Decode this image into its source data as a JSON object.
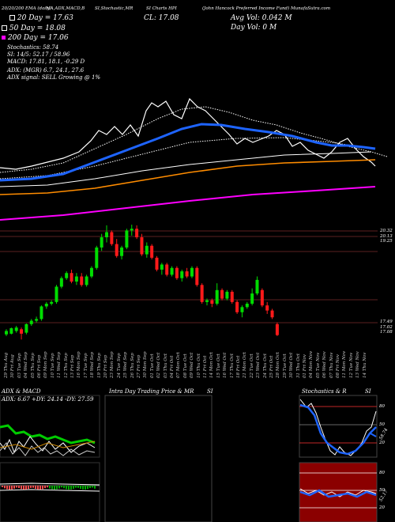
{
  "header": {
    "left_title": "20/20/200 EMA (daily)",
    "mid_titles": [
      "MA,ADX,MACD,B",
      "SI,Stochastic,MR",
      "SI Charts HPI"
    ],
    "right_title": "(John Hancock Preferred Income Fund) MunafaSutra.com"
  },
  "legend": [
    {
      "label": "20 Day = 17.63",
      "color": "#ffffff"
    },
    {
      "label": "50 Day = 18.08",
      "color": "#ffffff"
    },
    {
      "label": "200 Day = 17.06",
      "color": "#ff00ff"
    }
  ],
  "stats": {
    "cl": "CL: 17.08",
    "avg_vol": "Avg Vol: 0.042 M",
    "day_vol": "Day Vol: 0  M"
  },
  "indicators": [
    "Stochastics: 58.74",
    "SI: 14/5: 52.17 / 58.96",
    "MACD: 17.81, 18.1, -0.29 D",
    "ADX:                    (MGR) 6.7, 24.1, 27.6",
    "ADX  signal: SELL Growing @ 1%"
  ],
  "price_labels_right": [
    "20.32",
    "20.13",
    "19.25",
    "17.49",
    "17.02",
    "17.08"
  ],
  "dates": [
    "29 Thu Aug",
    "30 Fri Aug",
    "03 Tue Sep",
    "04 Wed Sep",
    "05 Thu Sep",
    "06 Fri Sep",
    "09 Mon Sep",
    "10 Tue Sep",
    "11 Wed Sep",
    "12 Thu Sep",
    "13 Fri Sep",
    "16 Mon Sep",
    "17 Tue Sep",
    "18 Wed Sep",
    "19 Thu Sep",
    "20 Fri Sep",
    "23 Mon Sep",
    "24 Tue Sep",
    "25 Wed Sep",
    "26 Thu Sep",
    "27 Fri Sep",
    "30 Mon Sep",
    "01 Tue Oct",
    "02 Wed Oct",
    "03 Thu Oct",
    "04 Fri Oct",
    "07 Mon Oct",
    "08 Tue Oct",
    "09 Wed Oct",
    "10 Thu Oct",
    "11 Fri Oct",
    "14 Mon Oct",
    "15 Tue Oct",
    "16 Wed Oct",
    "17 Thu Oct",
    "18 Fri Oct",
    "21 Mon Oct",
    "22 Tue Oct",
    "23 Wed Oct",
    "24 Thu Oct",
    "25 Fri Oct",
    "28 Mon Oct",
    "29 Tue Oct",
    "30 Wed Oct",
    "31 Thu Oct",
    "01 Fri Nov",
    "04 Mon Nov",
    "05 Tue Nov",
    "06 Wed Nov",
    "07 Thu Nov",
    "08 Fri Nov",
    "11 Mon Nov",
    "12 Tue Nov",
    "13 Wed Nov",
    "14 Thu Nov"
  ],
  "panels": {
    "adx_title": "ADX  & MACD",
    "adx_values": "ADX: 6.67  +DY: 24.14  -DY: 27.59",
    "mr_title": "Intra  Day Trading Price  & MR",
    "mr_si": "SI",
    "stoch_title": "Stochastics & R",
    "stoch_si": "SI",
    "stoch_scale": [
      "80",
      "50",
      "20"
    ],
    "si_scale": [
      "80",
      "50",
      "20"
    ],
    "stoch_value": "58.74",
    "si_value": "52.17"
  },
  "chart_data": {
    "type": "candlestick",
    "title": "SI Charts HPI",
    "ylabel": "",
    "candles": [
      {
        "o": 17.1,
        "h": 17.25,
        "l": 17.05,
        "c": 17.2
      },
      {
        "o": 17.12,
        "h": 17.3,
        "l": 17.1,
        "c": 17.28
      },
      {
        "o": 17.2,
        "h": 17.35,
        "l": 17.15,
        "c": 17.3
      },
      {
        "o": 17.25,
        "h": 17.3,
        "l": 16.95,
        "c": 17.12
      },
      {
        "o": 17.15,
        "h": 17.42,
        "l": 17.1,
        "c": 17.4
      },
      {
        "o": 17.4,
        "h": 17.55,
        "l": 17.35,
        "c": 17.5
      },
      {
        "o": 17.5,
        "h": 17.62,
        "l": 17.45,
        "c": 17.55
      },
      {
        "o": 17.55,
        "h": 17.95,
        "l": 17.5,
        "c": 17.92
      },
      {
        "o": 17.92,
        "h": 18.05,
        "l": 17.85,
        "c": 18.0
      },
      {
        "o": 18.0,
        "h": 18.1,
        "l": 17.95,
        "c": 18.05
      },
      {
        "o": 18.05,
        "h": 18.55,
        "l": 18.0,
        "c": 18.5
      },
      {
        "o": 18.5,
        "h": 18.8,
        "l": 18.45,
        "c": 18.75
      },
      {
        "o": 18.75,
        "h": 18.95,
        "l": 18.7,
        "c": 18.9
      },
      {
        "o": 18.9,
        "h": 19.0,
        "l": 18.6,
        "c": 18.65
      },
      {
        "o": 18.65,
        "h": 18.9,
        "l": 18.55,
        "c": 18.8
      },
      {
        "o": 18.8,
        "h": 18.9,
        "l": 18.5,
        "c": 18.55
      },
      {
        "o": 18.55,
        "h": 18.85,
        "l": 18.5,
        "c": 18.8
      },
      {
        "o": 18.8,
        "h": 19.1,
        "l": 18.75,
        "c": 19.05
      },
      {
        "o": 19.05,
        "h": 19.7,
        "l": 19.0,
        "c": 19.65
      },
      {
        "o": 19.65,
        "h": 20.05,
        "l": 19.55,
        "c": 19.95
      },
      {
        "o": 19.95,
        "h": 20.3,
        "l": 19.8,
        "c": 20.1
      },
      {
        "o": 20.1,
        "h": 20.15,
        "l": 19.7,
        "c": 19.75
      },
      {
        "o": 19.75,
        "h": 19.9,
        "l": 19.35,
        "c": 19.4
      },
      {
        "o": 19.4,
        "h": 19.7,
        "l": 19.3,
        "c": 19.65
      },
      {
        "o": 19.65,
        "h": 20.2,
        "l": 19.6,
        "c": 20.15
      },
      {
        "o": 20.15,
        "h": 20.32,
        "l": 20.0,
        "c": 20.2
      },
      {
        "o": 20.2,
        "h": 20.3,
        "l": 19.9,
        "c": 19.95
      },
      {
        "o": 19.95,
        "h": 20.05,
        "l": 19.4,
        "c": 19.45
      },
      {
        "o": 19.45,
        "h": 19.8,
        "l": 19.35,
        "c": 19.7
      },
      {
        "o": 19.7,
        "h": 19.75,
        "l": 19.3,
        "c": 19.35
      },
      {
        "o": 19.35,
        "h": 19.4,
        "l": 18.95,
        "c": 19.0
      },
      {
        "o": 19.0,
        "h": 19.2,
        "l": 18.85,
        "c": 19.15
      },
      {
        "o": 19.15,
        "h": 19.2,
        "l": 18.8,
        "c": 18.85
      },
      {
        "o": 18.85,
        "h": 19.1,
        "l": 18.8,
        "c": 19.05
      },
      {
        "o": 19.05,
        "h": 19.1,
        "l": 18.7,
        "c": 18.75
      },
      {
        "o": 18.75,
        "h": 19.0,
        "l": 18.65,
        "c": 18.95
      },
      {
        "o": 18.95,
        "h": 19.05,
        "l": 18.75,
        "c": 18.8
      },
      {
        "o": 18.8,
        "h": 19.1,
        "l": 18.75,
        "c": 19.05
      },
      {
        "o": 19.05,
        "h": 19.1,
        "l": 18.5,
        "c": 18.55
      },
      {
        "o": 18.55,
        "h": 18.6,
        "l": 18.0,
        "c": 18.05
      },
      {
        "o": 18.05,
        "h": 18.15,
        "l": 17.95,
        "c": 18.1
      },
      {
        "o": 18.1,
        "h": 18.15,
        "l": 17.9,
        "c": 18.0
      },
      {
        "o": 18.0,
        "h": 18.6,
        "l": 17.95,
        "c": 18.4
      },
      {
        "o": 18.4,
        "h": 18.45,
        "l": 18.1,
        "c": 18.15
      },
      {
        "o": 18.15,
        "h": 18.4,
        "l": 18.1,
        "c": 18.35
      },
      {
        "o": 18.35,
        "h": 18.4,
        "l": 18.0,
        "c": 18.05
      },
      {
        "o": 18.05,
        "h": 18.1,
        "l": 17.7,
        "c": 17.75
      },
      {
        "o": 17.75,
        "h": 17.95,
        "l": 17.6,
        "c": 17.9
      },
      {
        "o": 17.9,
        "h": 18.05,
        "l": 17.85,
        "c": 18.0
      },
      {
        "o": 18.0,
        "h": 18.45,
        "l": 17.95,
        "c": 18.3
      },
      {
        "o": 18.3,
        "h": 18.8,
        "l": 18.25,
        "c": 18.7
      },
      {
        "o": 18.4,
        "h": 18.45,
        "l": 17.9,
        "c": 17.95
      },
      {
        "o": 17.95,
        "h": 18.05,
        "l": 17.7,
        "c": 17.8
      },
      {
        "o": 17.8,
        "h": 17.85,
        "l": 17.55,
        "c": 17.6
      },
      {
        "o": 17.4,
        "h": 17.45,
        "l": 17.05,
        "c": 17.08
      }
    ],
    "ylim": [
      16.7,
      20.6
    ],
    "ema_series": [
      {
        "name": "20 Day",
        "color": "#1e64ff"
      },
      {
        "name": "50 Day",
        "color": "#ff8c00"
      },
      {
        "name": "200 Day",
        "color": "#ff00ff"
      }
    ]
  }
}
